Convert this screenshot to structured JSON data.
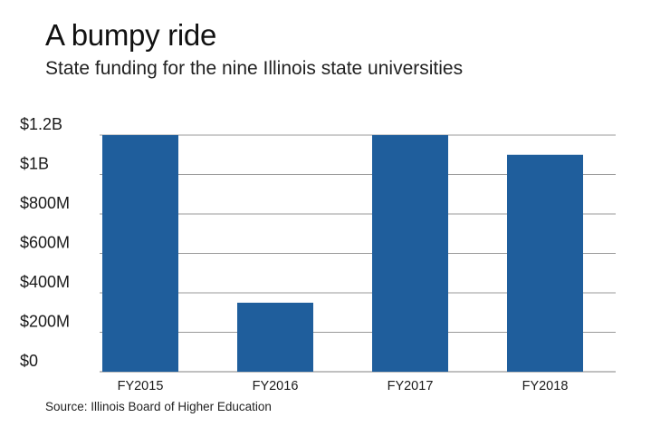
{
  "chart_data": {
    "type": "bar",
    "title": "A bumpy ride",
    "subtitle": "State funding for the nine Illinois state universities",
    "source": "Source: Illinois Board of Higher Education",
    "categories": [
      "FY2015",
      "FY2016",
      "FY2017",
      "FY2018"
    ],
    "values": [
      1200,
      350,
      1200,
      1100
    ],
    "unit": "million USD",
    "yticks": [
      {
        "value": 0,
        "label": "$0"
      },
      {
        "value": 200,
        "label": "$200M"
      },
      {
        "value": 400,
        "label": "$400M"
      },
      {
        "value": 600,
        "label": "$600M"
      },
      {
        "value": 800,
        "label": "$800M"
      },
      {
        "value": 1000,
        "label": "$1B"
      },
      {
        "value": 1200,
        "label": "$1.2B"
      }
    ],
    "ylim": [
      0,
      1200
    ],
    "xlabel": "",
    "ylabel": "",
    "grid": true,
    "bar_color": "#1f5e9c",
    "grid_color": "#9a9a9a"
  }
}
